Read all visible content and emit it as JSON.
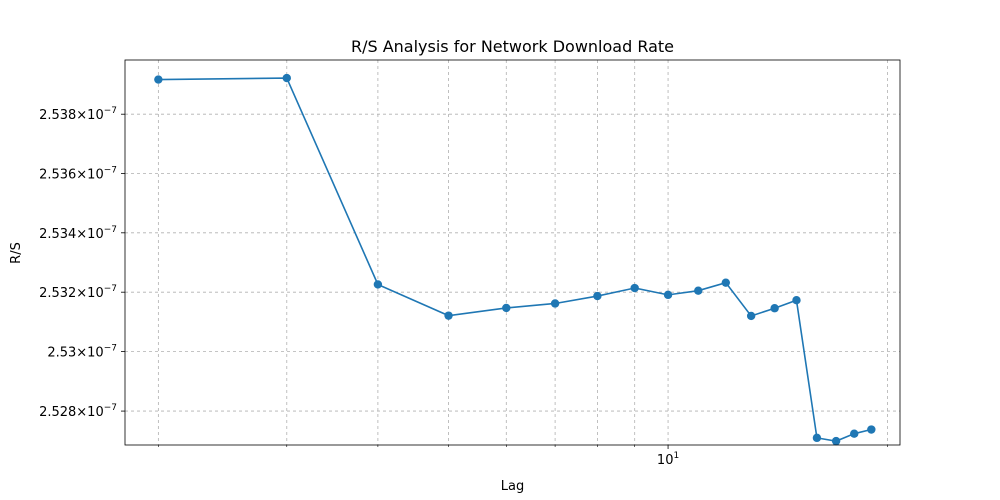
{
  "chart_data": {
    "type": "line",
    "title": "R/S Analysis for Network Download Rate",
    "xlabel": "Lag",
    "ylabel": "R/S",
    "xscale": "log",
    "yscale": "log",
    "grid": true,
    "colors": {
      "series": "#1f77b4",
      "grid": "#b0b0b0",
      "axes": "#000000"
    },
    "xlim": [
      1.8,
      20.8
    ],
    "ylim": [
      2.52686e-07,
      2.53983e-07
    ],
    "x_major_ticks": [
      {
        "value": 10,
        "base": "10",
        "exp": "1"
      }
    ],
    "x_minor_ticks": [
      2,
      3,
      4,
      5,
      6,
      7,
      8,
      9,
      20
    ],
    "y_ticks": [
      {
        "value": 2.528e-07,
        "mant": "2.528",
        "exp": "−7"
      },
      {
        "value": 2.53e-07,
        "mant": "2.53",
        "exp": "−7"
      },
      {
        "value": 2.532e-07,
        "mant": "2.532",
        "exp": "−7"
      },
      {
        "value": 2.534e-07,
        "mant": "2.534",
        "exp": "−7"
      },
      {
        "value": 2.536e-07,
        "mant": "2.536",
        "exp": "−7"
      },
      {
        "value": 2.538e-07,
        "mant": "2.538",
        "exp": "−7"
      }
    ],
    "series": [
      {
        "x": [
          2,
          3,
          4,
          5,
          6,
          7,
          8,
          9,
          10,
          11,
          12,
          13,
          14,
          15,
          16,
          17,
          18,
          19
        ],
        "y": [
          2.53917e-07,
          2.53922e-07,
          2.53226e-07,
          2.53121e-07,
          2.53147e-07,
          2.53162e-07,
          2.53187e-07,
          2.53214e-07,
          2.53191e-07,
          2.53205e-07,
          2.53232e-07,
          2.5312e-07,
          2.53146e-07,
          2.53173e-07,
          2.5271e-07,
          2.52699e-07,
          2.52724e-07,
          2.52738e-07
        ]
      }
    ]
  }
}
